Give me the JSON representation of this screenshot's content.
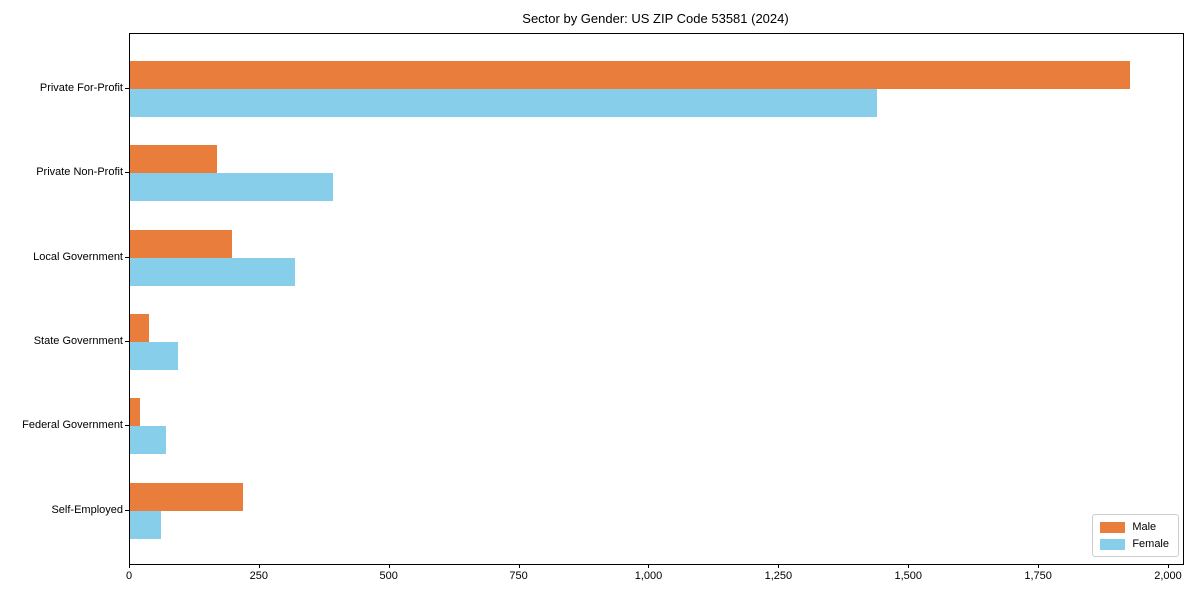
{
  "title": "Sector by Gender: US ZIP Code 53581 (2024)",
  "chart_data": {
    "type": "bar",
    "orientation": "horizontal",
    "title": "Sector by Gender: US ZIP Code 53581 (2024)",
    "categories": [
      "Private For-Profit",
      "Private Non-Profit",
      "Local Government",
      "State Government",
      "Federal Government",
      "Self-Employed"
    ],
    "series": [
      {
        "name": "Male",
        "color": "#E87D3C",
        "values": [
          1925,
          168,
          196,
          37,
          19,
          218
        ]
      },
      {
        "name": "Female",
        "color": "#87CEEB",
        "values": [
          1437,
          391,
          317,
          93,
          70,
          60
        ]
      }
    ],
    "xlabel": "",
    "ylabel": "",
    "xlim": [
      0,
      2027
    ],
    "x_tick_values": [
      0,
      250,
      500,
      750,
      1000,
      1250,
      1500,
      1750,
      2000
    ],
    "x_tick_labels": [
      "0",
      "250",
      "500",
      "750",
      "1,000",
      "1,250",
      "1,500",
      "1,750",
      "2,000"
    ],
    "grid": false,
    "legend": {
      "position": "lower right",
      "entries": [
        "Male",
        "Female"
      ]
    }
  }
}
